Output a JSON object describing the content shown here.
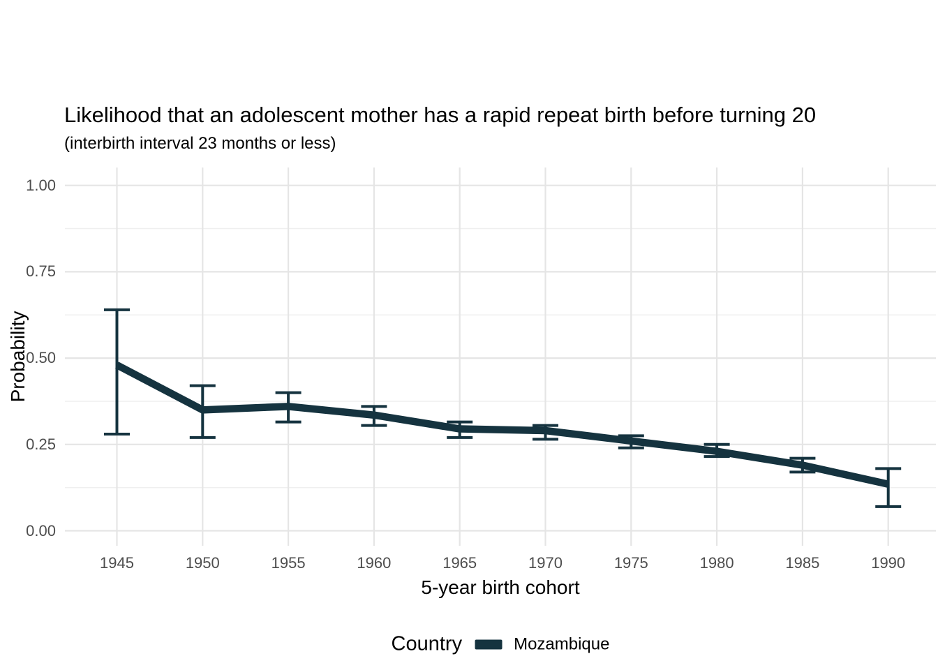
{
  "page": {
    "title": "Likelihood that an adolescent mother has a rapid repeat birth before turning 20",
    "subtitle": "(interbirth interval 23 months or less)"
  },
  "axes": {
    "x_title": "5-year birth cohort",
    "y_title": "Probability"
  },
  "legend": {
    "title": "Country",
    "items": [
      {
        "label": "Mozambique",
        "color": "#15333f"
      }
    ]
  },
  "colors": {
    "background": "#ffffff",
    "series": "#15333f",
    "grid_major": "#e5e5e5",
    "grid_minor": "#efefef",
    "tick_label": "#4d4d4d",
    "text": "#000000"
  },
  "chart_data": {
    "type": "line",
    "title": "Likelihood that an adolescent mother has a rapid repeat birth before turning 20",
    "subtitle": "(interbirth interval 23 months or less)",
    "xlabel": "5-year birth cohort",
    "ylabel": "Probability",
    "legend_title": "Country",
    "legend_position": "bottom",
    "grid": "major and minor horizontal, major vertical",
    "x_ticks": [
      1945,
      1950,
      1955,
      1960,
      1965,
      1970,
      1975,
      1980,
      1985,
      1990
    ],
    "x_tick_labels": [
      "1945",
      "1950",
      "1955",
      "1960",
      "1965",
      "1970",
      "1975",
      "1980",
      "1985",
      "1990"
    ],
    "y_ticks": [
      0,
      0.25,
      0.5,
      0.75,
      1
    ],
    "y_tick_labels": [
      "0.00",
      "0.25",
      "0.50",
      "0.75",
      "1.00"
    ],
    "ylim": [
      0,
      1
    ],
    "series": [
      {
        "name": "Mozambique",
        "color": "#15333f",
        "x": [
          1945,
          1950,
          1955,
          1960,
          1965,
          1970,
          1975,
          1980,
          1985,
          1990
        ],
        "y": [
          0.48,
          0.35,
          0.36,
          0.335,
          0.295,
          0.29,
          0.26,
          0.23,
          0.19,
          0.135
        ],
        "ci_low": [
          0.28,
          0.27,
          0.315,
          0.305,
          0.27,
          0.265,
          0.24,
          0.215,
          0.17,
          0.07
        ],
        "ci_high": [
          0.64,
          0.42,
          0.4,
          0.36,
          0.315,
          0.305,
          0.275,
          0.25,
          0.21,
          0.18
        ]
      }
    ]
  }
}
